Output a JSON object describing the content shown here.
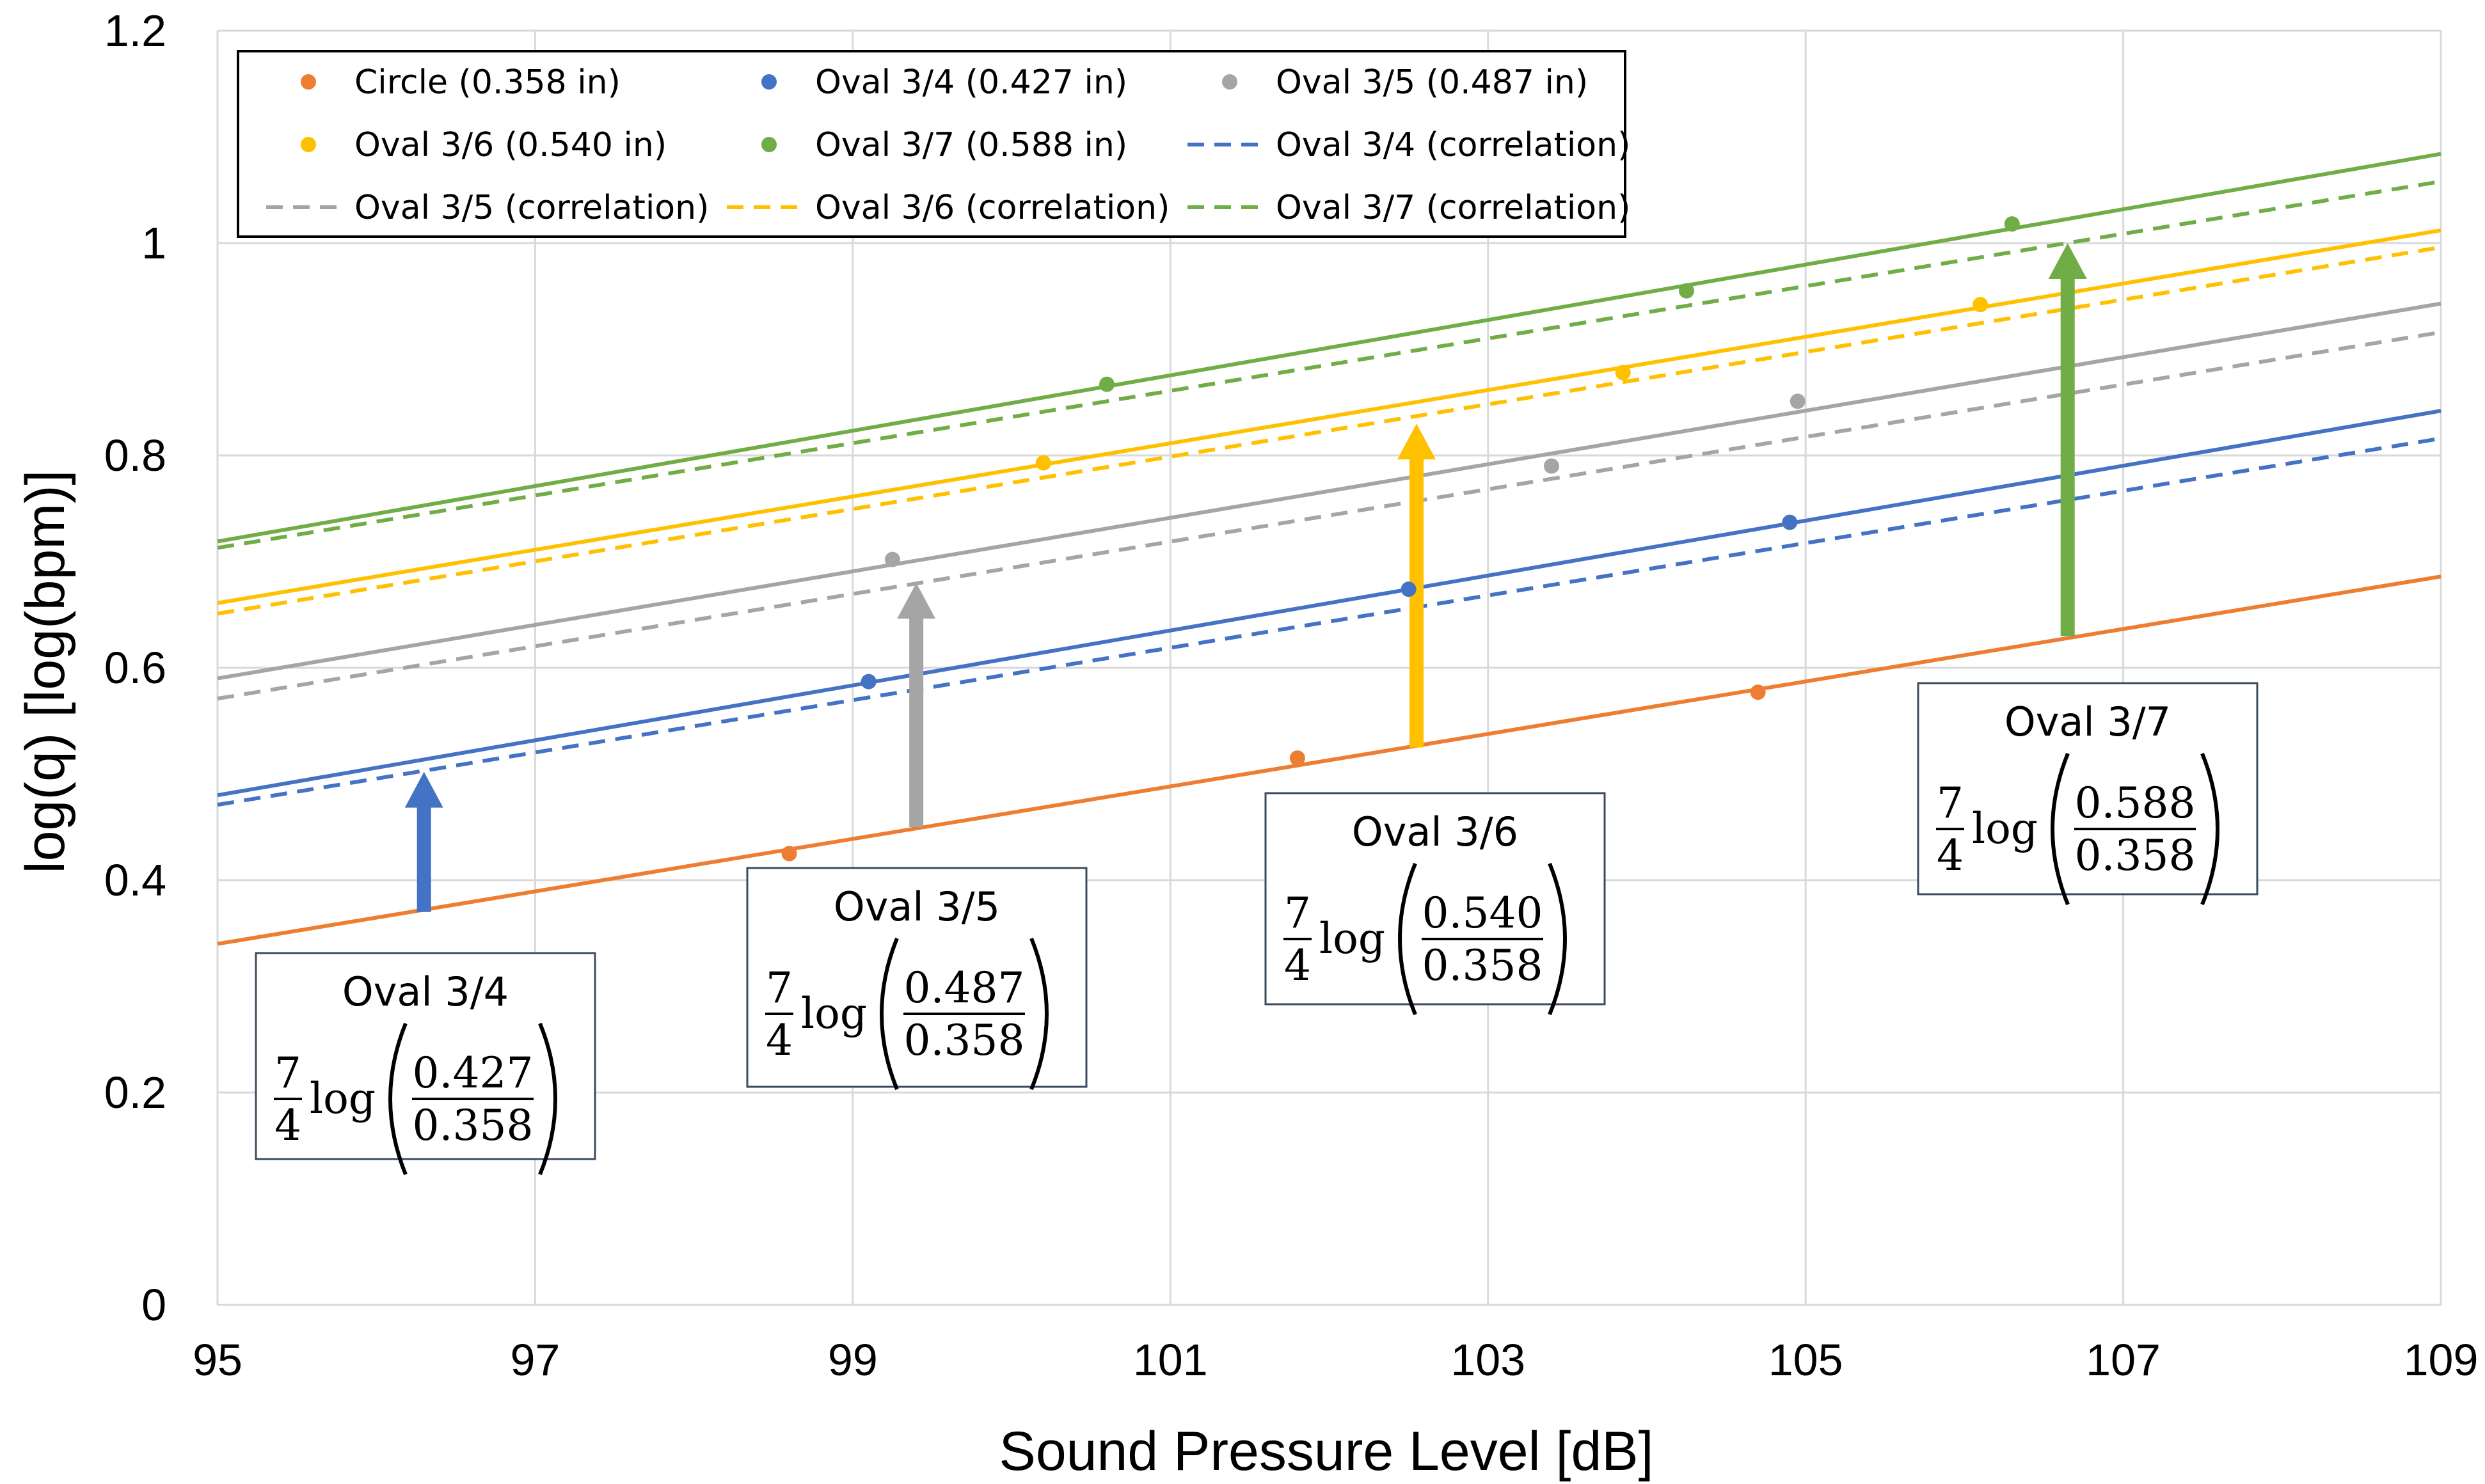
{
  "chart_data": {
    "type": "scatter",
    "xlabel": "Sound Pressure Level [dB]",
    "ylabel": "log(q)  [log(bpm)]",
    "xlim": [
      95,
      109
    ],
    "ylim": [
      0,
      1.2
    ],
    "x_ticks": [
      "95",
      "97",
      "99",
      "101",
      "103",
      "105",
      "107",
      "109"
    ],
    "y_ticks": [
      "0",
      "0.2",
      "0.4",
      "0.6",
      "0.8",
      "1",
      "1.2"
    ],
    "grid": true,
    "colors": {
      "circle": "#ED7D31",
      "oval34": "#4472C4",
      "oval35": "#A5A5A5",
      "oval36": "#FFC000",
      "oval37": "#70AD47"
    },
    "series": [
      {
        "key": "circle",
        "name": "Circle (0.358 in)",
        "color": "#ED7D31",
        "points": [
          [
            98.6,
            0.425
          ],
          [
            101.8,
            0.515
          ],
          [
            104.7,
            0.577
          ]
        ]
      },
      {
        "key": "oval34",
        "name": "Oval 3/4 (0.427 in)",
        "color": "#4472C4",
        "points": [
          [
            99.1,
            0.587
          ],
          [
            102.5,
            0.674
          ],
          [
            104.9,
            0.737
          ]
        ]
      },
      {
        "key": "oval35",
        "name": "Oval 3/5 (0.487 in)",
        "color": "#A5A5A5",
        "points": [
          [
            99.25,
            0.702
          ],
          [
            103.4,
            0.79
          ],
          [
            104.95,
            0.851
          ]
        ]
      },
      {
        "key": "oval36",
        "name": "Oval 3/6 (0.540 in)",
        "color": "#FFC000",
        "points": [
          [
            100.2,
            0.793
          ],
          [
            103.85,
            0.878
          ],
          [
            106.1,
            0.942
          ]
        ]
      },
      {
        "key": "oval37",
        "name": "Oval 3/7 (0.588 in)",
        "color": "#70AD47",
        "points": [
          [
            100.6,
            0.867
          ],
          [
            104.25,
            0.955
          ],
          [
            106.3,
            1.018
          ]
        ]
      }
    ],
    "trendlines": [
      {
        "series": "circle",
        "y_at_95": 0.34,
        "y_at_109": 0.686
      },
      {
        "series": "oval34",
        "y_at_95": 0.48,
        "y_at_109": 0.842
      },
      {
        "series": "oval35",
        "y_at_95": 0.59,
        "y_at_109": 0.943
      },
      {
        "series": "oval36",
        "y_at_95": 0.661,
        "y_at_109": 1.012
      },
      {
        "series": "oval37",
        "y_at_95": 0.719,
        "y_at_109": 1.084
      }
    ],
    "correlations": [
      {
        "key": "oval34",
        "name": "Oval 3/4 (correlation)",
        "color": "#4472C4",
        "y_at_95": 0.471,
        "y_at_109": 0.816
      },
      {
        "key": "oval35",
        "name": "Oval 3/5 (correlation)",
        "color": "#A5A5A5",
        "y_at_95": 0.571,
        "y_at_109": 0.916
      },
      {
        "key": "oval36",
        "name": "Oval 3/6 (correlation)",
        "color": "#FFC000",
        "y_at_95": 0.651,
        "y_at_109": 0.996
      },
      {
        "key": "oval37",
        "name": "Oval 3/7 (correlation)",
        "color": "#70AD47",
        "y_at_95": 0.713,
        "y_at_109": 1.058
      }
    ],
    "arrows": [
      {
        "key": "oval34",
        "color": "#4472C4",
        "x": 96.3,
        "y_from": 0.37,
        "y_to": 0.502
      },
      {
        "key": "oval35",
        "color": "#A5A5A5",
        "x": 99.4,
        "y_from": 0.45,
        "y_to": 0.68
      },
      {
        "key": "oval36",
        "color": "#FFC000",
        "x": 102.55,
        "y_from": 0.525,
        "y_to": 0.83
      },
      {
        "key": "oval37",
        "color": "#70AD47",
        "x": 106.65,
        "y_from": 0.63,
        "y_to": 1.0
      }
    ],
    "annotations": [
      {
        "key": "oval34",
        "title": "Oval 3/4",
        "num": "7",
        "den": "4",
        "fn": "log",
        "ratio_num": "0.427",
        "ratio_den": "0.358"
      },
      {
        "key": "oval35",
        "title": "Oval 3/5",
        "num": "7",
        "den": "4",
        "fn": "log",
        "ratio_num": "0.487",
        "ratio_den": "0.358"
      },
      {
        "key": "oval36",
        "title": "Oval 3/6",
        "num": "7",
        "den": "4",
        "fn": "log",
        "ratio_num": "0.540",
        "ratio_den": "0.358"
      },
      {
        "key": "oval37",
        "title": "Oval 3/7",
        "num": "7",
        "den": "4",
        "fn": "log",
        "ratio_num": "0.588",
        "ratio_den": "0.358"
      }
    ],
    "legend": {
      "placement": "top-left",
      "entries": [
        {
          "label": "Circle (0.358 in)",
          "marker": "dot",
          "color": "#ED7D31"
        },
        {
          "label": "Oval 3/4 (0.427 in)",
          "marker": "dot",
          "color": "#4472C4"
        },
        {
          "label": "Oval 3/5 (0.487 in)",
          "marker": "dot",
          "color": "#A5A5A5"
        },
        {
          "label": "Oval 3/6 (0.540 in)",
          "marker": "dot",
          "color": "#FFC000"
        },
        {
          "label": "Oval 3/7 (0.588 in)",
          "marker": "dot",
          "color": "#70AD47"
        },
        {
          "label": "Oval 3/4 (correlation)",
          "marker": "dash",
          "color": "#4472C4"
        },
        {
          "label": "Oval 3/5 (correlation)",
          "marker": "dash",
          "color": "#A5A5A5"
        },
        {
          "label": "Oval 3/6 (correlation)",
          "marker": "dash",
          "color": "#FFC000"
        },
        {
          "label": "Oval 3/7 (correlation)",
          "marker": "dash",
          "color": "#70AD47"
        }
      ]
    }
  }
}
